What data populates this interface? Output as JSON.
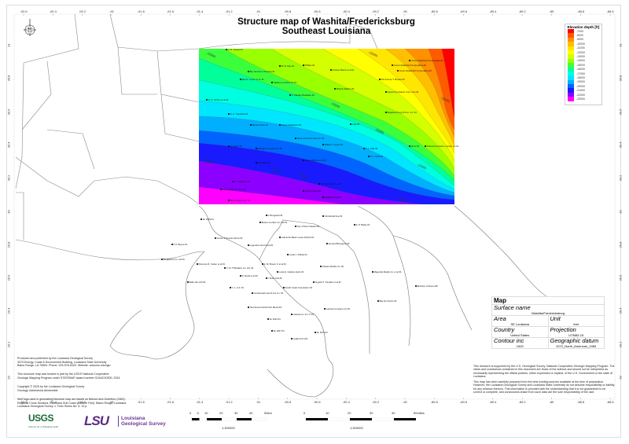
{
  "title": {
    "line1": "Structure map of Washita/Fredericksburg",
    "line2": "Southeast Louisiana"
  },
  "axes": {
    "longitude_ticks": [
      "-92.6",
      "-92.4",
      "-92.2",
      "-92",
      "-91.8",
      "-91.6",
      "-91.4",
      "-91.2",
      "-91",
      "-90.8",
      "-90.6",
      "-90.4",
      "-90.2",
      "-90",
      "-89.8",
      "-89.6",
      "-89.4",
      "-89.2",
      "-89",
      "-88.8",
      "-88.6"
    ],
    "latitude_ticks": [
      "31",
      "30.8",
      "30.6",
      "30.4",
      "30.2",
      "30",
      "29.8",
      "29.6",
      "29.4",
      "29.2",
      "29"
    ]
  },
  "north_arrow": {
    "label": "N",
    "icon": "compass-rose-icon"
  },
  "legend": {
    "title": "Elevation depth [ft]",
    "entries": [
      {
        "value": "-7000",
        "color": "#ff0000"
      },
      {
        "value": "-8000",
        "color": "#ff5a00"
      },
      {
        "value": "-9000",
        "color": "#ff9000"
      },
      {
        "value": "-10000",
        "color": "#ffbf00"
      },
      {
        "value": "-11000",
        "color": "#ffe600"
      },
      {
        "value": "-12000",
        "color": "#ffff00"
      },
      {
        "value": "-13000",
        "color": "#d4ff00"
      },
      {
        "value": "-14000",
        "color": "#9aff00"
      },
      {
        "value": "-15000",
        "color": "#3cff3c"
      },
      {
        "value": "-16000",
        "color": "#00ff9a"
      },
      {
        "value": "-17000",
        "color": "#00ffe0"
      },
      {
        "value": "-18000",
        "color": "#00e6ff"
      },
      {
        "value": "-19000",
        "color": "#00b0ff"
      },
      {
        "value": "-20000",
        "color": "#0064ff"
      },
      {
        "value": "-21000",
        "color": "#1a1aff"
      },
      {
        "value": "-22000",
        "color": "#8c00ff"
      },
      {
        "value": "-23000",
        "color": "#ff00ff"
      }
    ]
  },
  "contour_labels": [
    "-15000",
    "-15000",
    "-15000",
    "-13000",
    "-10000",
    "-10000",
    "-19000",
    "-20000",
    "-20000",
    "-21000"
  ],
  "wells": [
    "H. N. Fussel #1",
    "Boy Scouts of America #1",
    "W. R. Day #1",
    "Phillips #1",
    "Andrew Brand et al #1",
    "Crown Zellerbach Corporation #1",
    "Crown Zellerbach Corporation #2",
    "Crown Zellerbach Corporation #3",
    "Mrs Fannie T. Brooks #1",
    "Bob R. Jones \"A-A\" #1",
    "Salsbury Lumber Co #1",
    "Murphy Refiner #1",
    "Gaylord Container Corp. Fee #1",
    "A. Claude Plantation #1",
    "W. N. McKey et al #1",
    "D. A. Tranchina #1",
    "Bogalusa Tung Oil Co. Inc. #1",
    "Barnett Hano #1",
    "Crown Zellerbach #1",
    "Kelly #1",
    "Hammond Oil & Gas Co. #1",
    "William T. Joyce #1",
    "Hoopster #1",
    "Ervington Lumber Co. #1",
    "Dunn #1",
    "Poitevent & Favre Lumber Co #1",
    "S. L. 1111 #1",
    "S. L. 1143 #1",
    "James Burton et al #1",
    "Kell Miller #1",
    "M. J. Bigelow #1",
    "Lois M. Bain Co. Inc. #1",
    "St. John Land Co. #1",
    "Lignite Moore #1",
    "Nettleton et al #1",
    "Bunch Farms Inc. #1",
    "F. Bougeard #1",
    "Boston Lumber Co. Ltd #1",
    "Occidental Fee #1",
    "City of New Orleans #1",
    "SL 3329 #1",
    "Lafourche Basin Levee District #1",
    "Armand Bourgeois #1",
    "Cortez & Doucet Farms #1",
    "Legendre Land Corp #2",
    "Lovell J. Pellioit #1",
    "F. P. Boyce #1",
    "Florence R. Cotten et al #1",
    "C. M. Thibodaux Co. Ltd. #1",
    "E. M. Brown Jr et al #1",
    "Louis E. Cadiere Heirs #1",
    "Orleans Realty Co. #2",
    "Burguieres Co. Ltd #1",
    "R. Rudd et al #1",
    "Y Hanf Unit #1",
    "Angela S. Tompkin et al #1",
    "Belle Isle Unit #1",
    "C. L. & F. #1",
    "South Coast Corporation #1",
    "Continental Land & Fur Co. #1",
    "Terrebonne Parish Sch Board #1",
    "Latonia Co. Inc 'C' #1",
    "Latonia Company Inc #3",
    "SL 4321 #1",
    "SL 4927 #1",
    "LL&E Unit 5 #1",
    "SL 4079 #1",
    "E. P. Brady #1",
    "Magnolia Realty Co. et al #1",
    "Bay De Chene #1",
    "Brandon Johnson #8"
  ],
  "info_box": {
    "title": "Map",
    "surface_name_label": "Surface name",
    "surface_name": "Washita/Fredericksburg",
    "area_label": "Area",
    "area": "SE Louisiana",
    "unit_label": "Unit",
    "unit": "feet",
    "country_label": "Country",
    "country": "United States",
    "projection_label": "Projection",
    "projection": "UTM83-15",
    "contour_label": "Contour inc",
    "contour": "1000",
    "datum_label": "Geographic datum",
    "datum": "GCS_North_American_1983"
  },
  "disclaimer": [
    "This research is supported by the U.S. Geological Survey, National Cooperative Geologic Mapping Program. The views and conclusions contained in this document are those of the authors and should not be interpreted as necessarily representing the official policies, either expressed or implied, of the U.S. Government or the state of Louisiana.",
    "This map has been carefully prepared from the best existing sources available at the time of preparation. However, the Louisiana Geological Survey and Louisiana State University do not assume responsibility or liability for any reliance thereon. This information is provided with the understanding that it is not guaranteed to be correct or complete, and conclusions drawn from such data are the sole responsibility of the user."
  ],
  "credits": [
    "Produced and published by the Louisiana Geological Survey\n3079 Energy, Coast & Environment Building, Louisiana State University\nBaton Rouge, LA 70803. Phone: 225-578-5320. Website: www.lsu.edu/lgs/",
    "This structure map was funded in part by the USGS National Cooperative\nGeologic Mapping Program under STATEMAP award number G24AC00300, 2024",
    "Copyright © 2025 by the Louisiana Geological Survey\nGeology: Akinbobola Akintomide",
    "Well logs used in generating structure map are based on Bebout and Gutierrez (1983):\nRegional Cross Sections, Louisiana Gulf Coast (Eastern Part). Baton Rouge, Louisiana\nLouisiana Geological Survey. v. Folio Series No. 6, 10 p."
  ],
  "logos": {
    "usgs": "USGS",
    "usgs_tagline": "science for a changing world",
    "lsu": "LSU",
    "lgs": "Louisiana Geological Survey"
  },
  "scale_km": {
    "ticks": [
      "0",
      "5",
      "10",
      "20",
      "30",
      "40",
      "50km"
    ],
    "ratio": "1:300000"
  },
  "scale_mi": {
    "ticks": [
      "0",
      "10",
      "20",
      "30",
      "40",
      "50miles"
    ],
    "ratio": "1:300000"
  }
}
